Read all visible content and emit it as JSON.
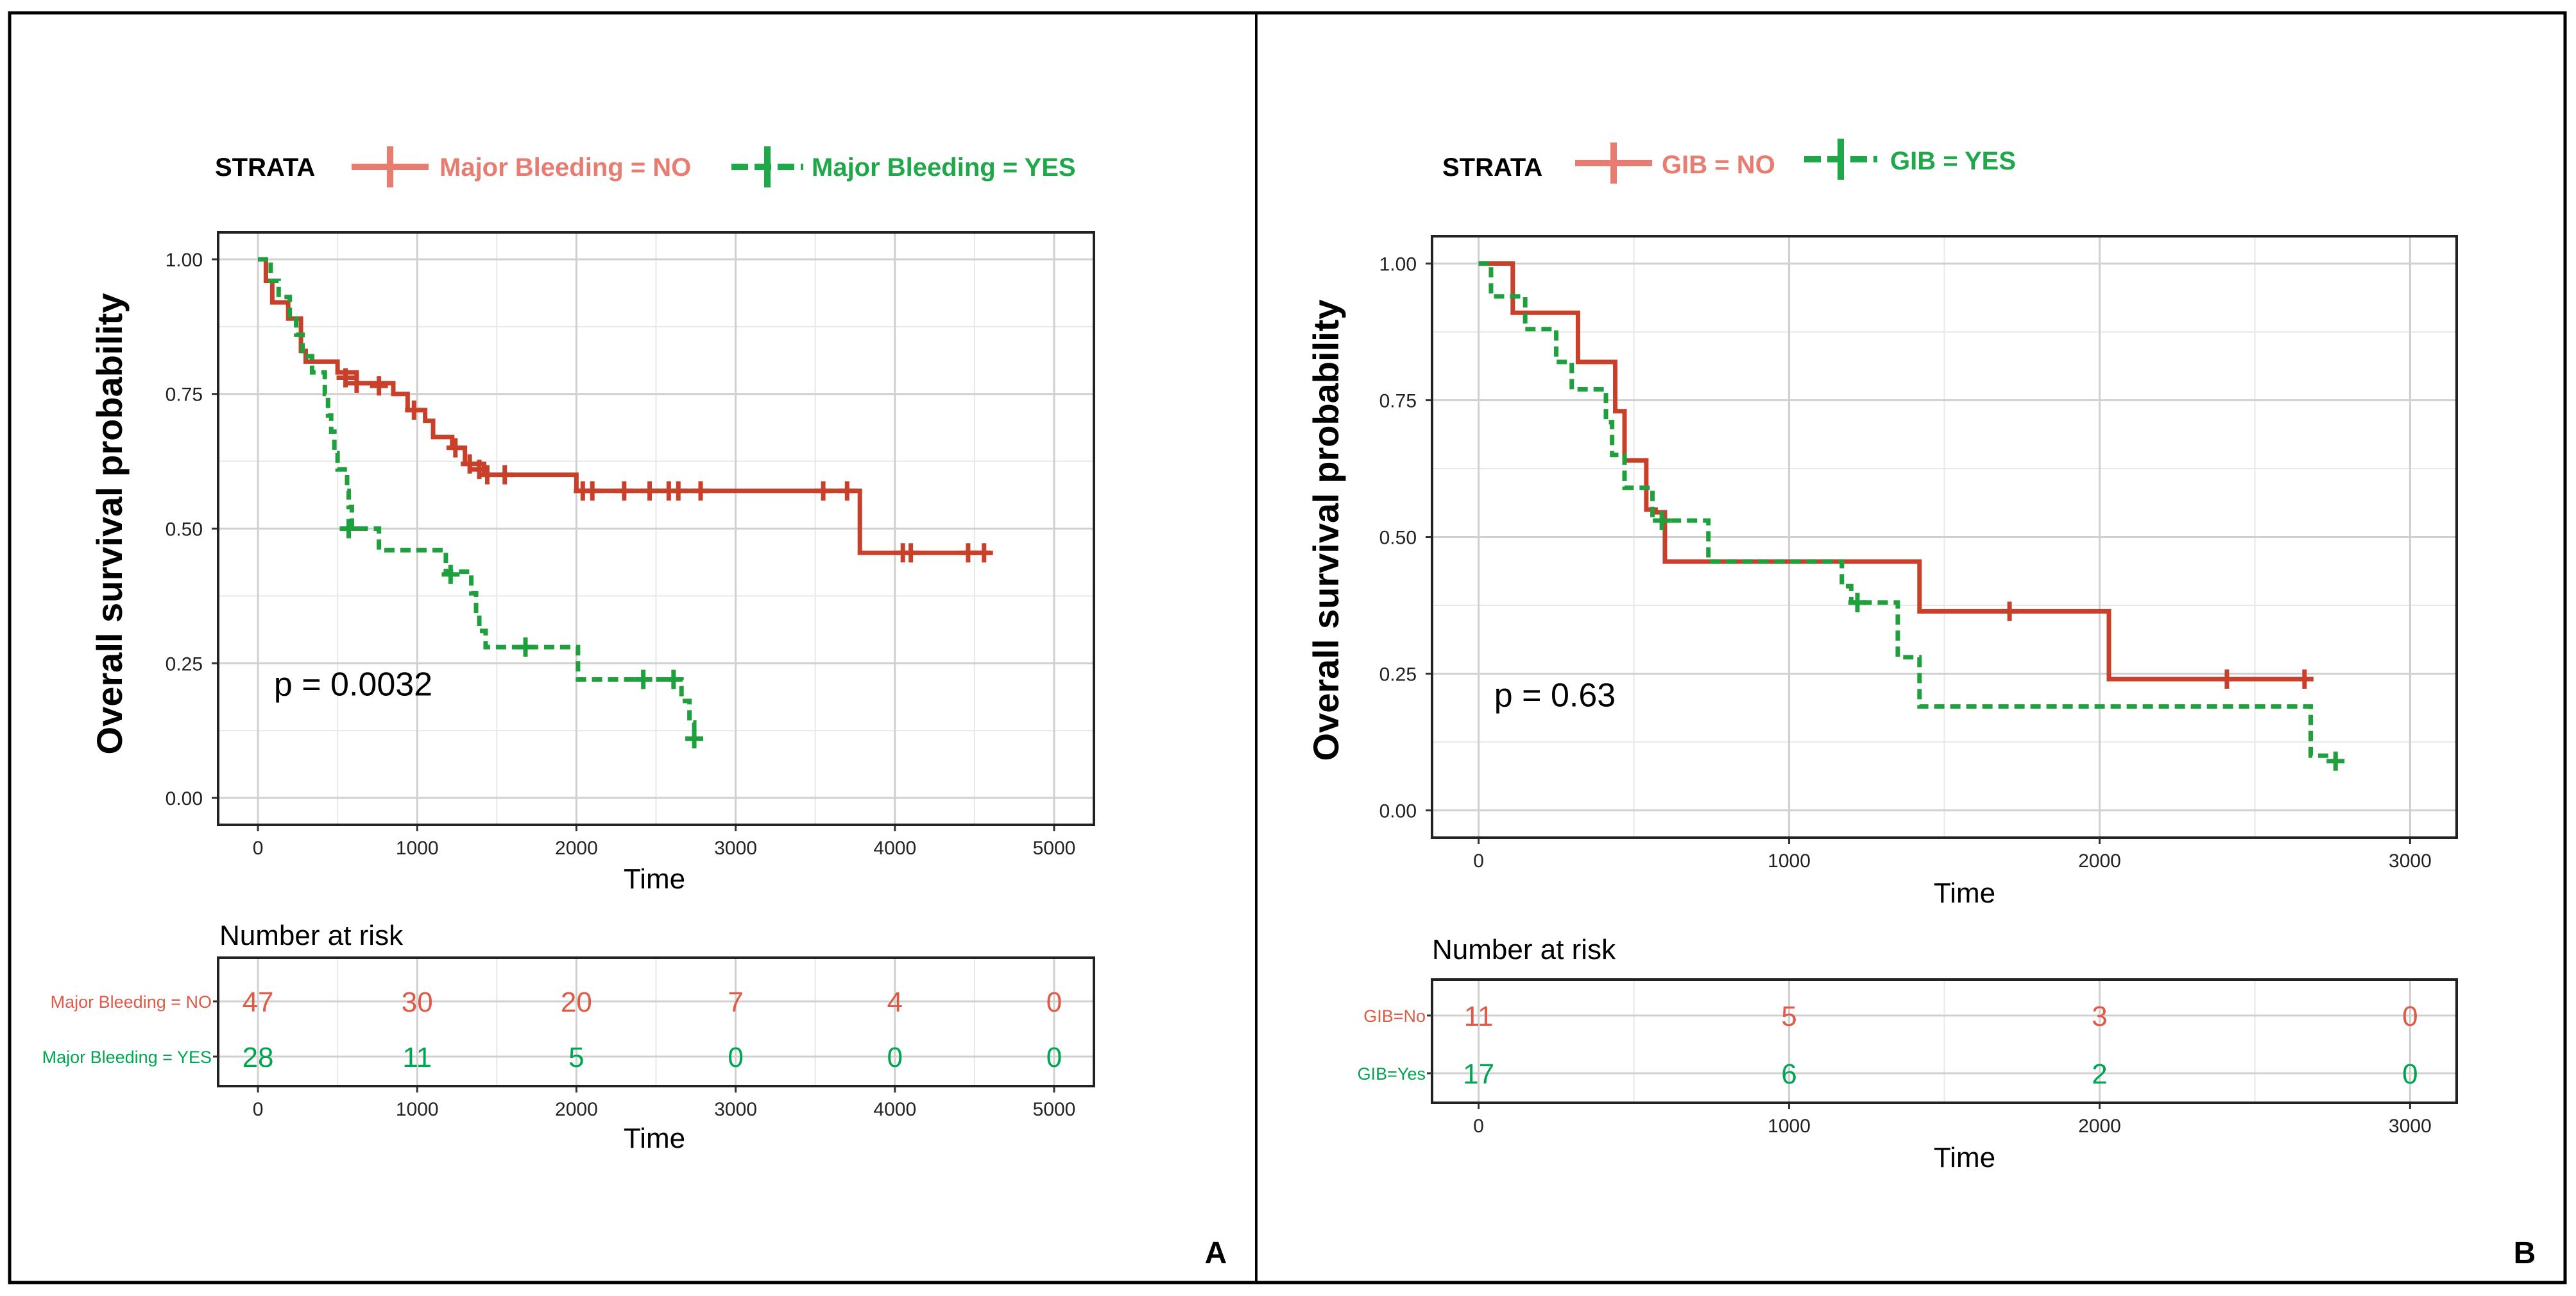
{
  "chart_data": [
    {
      "type": "km-survival",
      "panel_label": "A",
      "legend_title": "STRATA",
      "ylabel": "Overall survival probability",
      "xlabel": "Time",
      "xlim": [
        -250,
        5250
      ],
      "ylim": [
        -0.05,
        1.05
      ],
      "xticks": [
        0,
        1000,
        2000,
        3000,
        4000,
        5000
      ],
      "xtick_labels": [
        "0",
        "1000",
        "2000",
        "3000",
        "4000",
        "5000"
      ],
      "yticks": [
        0,
        0.25,
        0.5,
        0.75,
        1.0
      ],
      "ytick_labels": [
        "0.00",
        "0.25",
        "0.50",
        "0.75",
        "1.00"
      ],
      "pvalue_text": "p = 0.0032",
      "pvalue_pos": [
        100,
        0.19
      ],
      "series": [
        {
          "name": "Major Bleeding = NO",
          "color": "#c8402a",
          "legend_color": "#e87c70",
          "risk_color": "#e05a46",
          "dashed": false,
          "risk_label": "Major Bleeding = NO",
          "risk_values": [
            "47",
            "30",
            "20",
            "7",
            "4",
            "0"
          ],
          "steps": [
            [
              0,
              1.0
            ],
            [
              50,
              0.96
            ],
            [
              90,
              0.92
            ],
            [
              190,
              0.89
            ],
            [
              270,
              0.83
            ],
            [
              300,
              0.81
            ],
            [
              500,
              0.79
            ],
            [
              620,
              0.77
            ],
            [
              850,
              0.75
            ],
            [
              940,
              0.72
            ],
            [
              1050,
              0.7
            ],
            [
              1100,
              0.67
            ],
            [
              1220,
              0.65
            ],
            [
              1300,
              0.62
            ],
            [
              1420,
              0.6
            ],
            [
              2000,
              0.57
            ],
            [
              3780,
              0.455
            ],
            [
              4600,
              0.455
            ]
          ],
          "censors": [
            [
              550,
              0.78
            ],
            [
              620,
              0.77
            ],
            [
              760,
              0.765
            ],
            [
              980,
              0.72
            ],
            [
              1240,
              0.65
            ],
            [
              1330,
              0.62
            ],
            [
              1390,
              0.61
            ],
            [
              1440,
              0.6
            ],
            [
              1550,
              0.6
            ],
            [
              2040,
              0.57
            ],
            [
              2100,
              0.57
            ],
            [
              2300,
              0.57
            ],
            [
              2460,
              0.57
            ],
            [
              2580,
              0.57
            ],
            [
              2640,
              0.57
            ],
            [
              2780,
              0.57
            ],
            [
              3550,
              0.57
            ],
            [
              3700,
              0.57
            ],
            [
              4050,
              0.455
            ],
            [
              4100,
              0.455
            ],
            [
              4460,
              0.455
            ],
            [
              4560,
              0.455
            ]
          ]
        },
        {
          "name": "Major Bleeding = YES",
          "color": "#1ea03c",
          "legend_color": "#1ea84a",
          "risk_color": "#00a550",
          "dashed": true,
          "risk_label": "Major Bleeding = YES",
          "risk_values": [
            "28",
            "11",
            "5",
            "0",
            "0",
            "0"
          ],
          "steps": [
            [
              0,
              1.0
            ],
            [
              80,
              0.96
            ],
            [
              130,
              0.93
            ],
            [
              200,
              0.89
            ],
            [
              240,
              0.86
            ],
            [
              280,
              0.82
            ],
            [
              340,
              0.79
            ],
            [
              420,
              0.75
            ],
            [
              440,
              0.71
            ],
            [
              460,
              0.68
            ],
            [
              480,
              0.64
            ],
            [
              500,
              0.61
            ],
            [
              560,
              0.57
            ],
            [
              570,
              0.54
            ],
            [
              590,
              0.5
            ],
            [
              760,
              0.46
            ],
            [
              1180,
              0.42
            ],
            [
              1340,
              0.38
            ],
            [
              1370,
              0.34
            ],
            [
              1390,
              0.31
            ],
            [
              1430,
              0.28
            ],
            [
              2010,
              0.22
            ],
            [
              2660,
              0.18
            ],
            [
              2710,
              0.14
            ],
            [
              2740,
              0.11
            ]
          ],
          "censors": [
            [
              570,
              0.5
            ],
            [
              1210,
              0.415
            ],
            [
              1680,
              0.28
            ],
            [
              2420,
              0.22
            ],
            [
              2610,
              0.22
            ],
            [
              2740,
              0.11
            ]
          ]
        }
      ]
    },
    {
      "type": "km-survival",
      "panel_label": "B",
      "legend_title": "STRATA",
      "ylabel": "Overall survival probability",
      "xlabel": "Time",
      "xlim": [
        -150,
        3150
      ],
      "ylim": [
        -0.05,
        1.05
      ],
      "xticks": [
        0,
        1000,
        2000,
        3000
      ],
      "xtick_labels": [
        "0",
        "1000",
        "2000",
        "3000"
      ],
      "yticks": [
        0,
        0.25,
        0.5,
        0.75,
        1.0
      ],
      "ytick_labels": [
        "0.00",
        "0.25",
        "0.50",
        "0.75",
        "1.00"
      ],
      "pvalue_text": "p = 0.63",
      "pvalue_pos": [
        50,
        0.19
      ],
      "series": [
        {
          "name": "GIB = NO",
          "color": "#c8402a",
          "legend_color": "#e87c70",
          "risk_color": "#e05a46",
          "dashed": false,
          "risk_label": "GIB=No",
          "risk_values": [
            "11",
            "5",
            "3",
            "0"
          ],
          "steps": [
            [
              0,
              1.0
            ],
            [
              110,
              0.91
            ],
            [
              320,
              0.82
            ],
            [
              440,
              0.73
            ],
            [
              470,
              0.64
            ],
            [
              540,
              0.55
            ],
            [
              570,
              0.545
            ],
            [
              600,
              0.455
            ],
            [
              1420,
              0.364
            ],
            [
              2030,
              0.24
            ],
            [
              2660,
              0.24
            ]
          ],
          "censors": [
            [
              1710,
              0.364
            ],
            [
              2410,
              0.24
            ],
            [
              2660,
              0.24
            ]
          ]
        },
        {
          "name": "GIB = YES",
          "color": "#1ea03c",
          "legend_color": "#1ea84a",
          "risk_color": "#00a550",
          "dashed": true,
          "risk_label": "GIB=Yes",
          "risk_values": [
            "17",
            "6",
            "2",
            "0"
          ],
          "steps": [
            [
              0,
              1.0
            ],
            [
              40,
              0.94
            ],
            [
              150,
              0.88
            ],
            [
              250,
              0.82
            ],
            [
              300,
              0.77
            ],
            [
              410,
              0.71
            ],
            [
              430,
              0.65
            ],
            [
              470,
              0.59
            ],
            [
              560,
              0.53
            ],
            [
              740,
              0.455
            ],
            [
              1170,
              0.41
            ],
            [
              1200,
              0.38
            ],
            [
              1350,
              0.28
            ],
            [
              1420,
              0.19
            ],
            [
              2680,
              0.1
            ],
            [
              2760,
              0.1
            ]
          ],
          "censors": [
            [
              590,
              0.53
            ],
            [
              1220,
              0.38
            ],
            [
              2760,
              0.09
            ]
          ]
        }
      ]
    }
  ]
}
